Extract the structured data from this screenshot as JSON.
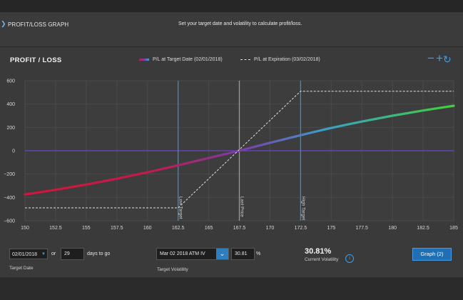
{
  "header": {
    "title": "PROFIT/LOSS GRAPH",
    "hint": "Set your target date and volatility to calculate profit/loss."
  },
  "panel": {
    "title": "PROFIT / LOSS",
    "legend_target": "P/L at Target Date (02/01/2018)",
    "legend_expiration": "P/L at Expiration (03/02/2018)",
    "zoom_out": "−",
    "zoom_in": "+",
    "refresh": "↻"
  },
  "chart_data": {
    "type": "line",
    "xlim": [
      150,
      185
    ],
    "ylim": [
      -600,
      600
    ],
    "x_ticks": [
      "150",
      "152.5",
      "155",
      "157.5",
      "160",
      "162.5",
      "165",
      "167.5",
      "170",
      "172.5",
      "175",
      "177.5",
      "180",
      "182.5",
      "185"
    ],
    "y_ticks": [
      "600",
      "400",
      "200",
      "0",
      "−200",
      "−400",
      "−600"
    ],
    "series": [
      {
        "name": "P/L at Target Date (02/01/2018)",
        "x": [
          150,
          152.5,
          155,
          157.5,
          160,
          162.5,
          165,
          167.5,
          170,
          172.5,
          175,
          177.5,
          180,
          182.5,
          185
        ],
        "y": [
          -375,
          -335,
          -290,
          -240,
          -185,
          -125,
          -62,
          0,
          68,
          133,
          195,
          250,
          300,
          345,
          385
        ]
      },
      {
        "name": "P/L at Expiration (03/02/2018)",
        "x": [
          150,
          162.5,
          172.5,
          185
        ],
        "y": [
          -490,
          -490,
          510,
          510
        ]
      }
    ],
    "vlines": [
      {
        "x": 162.5,
        "label": "Low Target",
        "color": "#2f8fd6"
      },
      {
        "x": 167.5,
        "label": "Last Price",
        "color": "#9a9a9a"
      },
      {
        "x": 172.5,
        "label": "High Target",
        "color": "#2f8fd6"
      }
    ],
    "zero_line_color": "#6a45c9"
  },
  "controls": {
    "target_date": "02/01/2018",
    "or_label": "or",
    "days": "29",
    "days_label": "days to go",
    "target_date_label": "Target Date",
    "volatility_select": "Mar 02 2018 ATM IV",
    "volatility_value": "30.81",
    "percent_sign": "%",
    "target_volatility_label": "Target Volatility",
    "current_volatility": "30.81%",
    "current_volatility_label": "Current Volatility",
    "graph_button": "Graph (2)"
  }
}
